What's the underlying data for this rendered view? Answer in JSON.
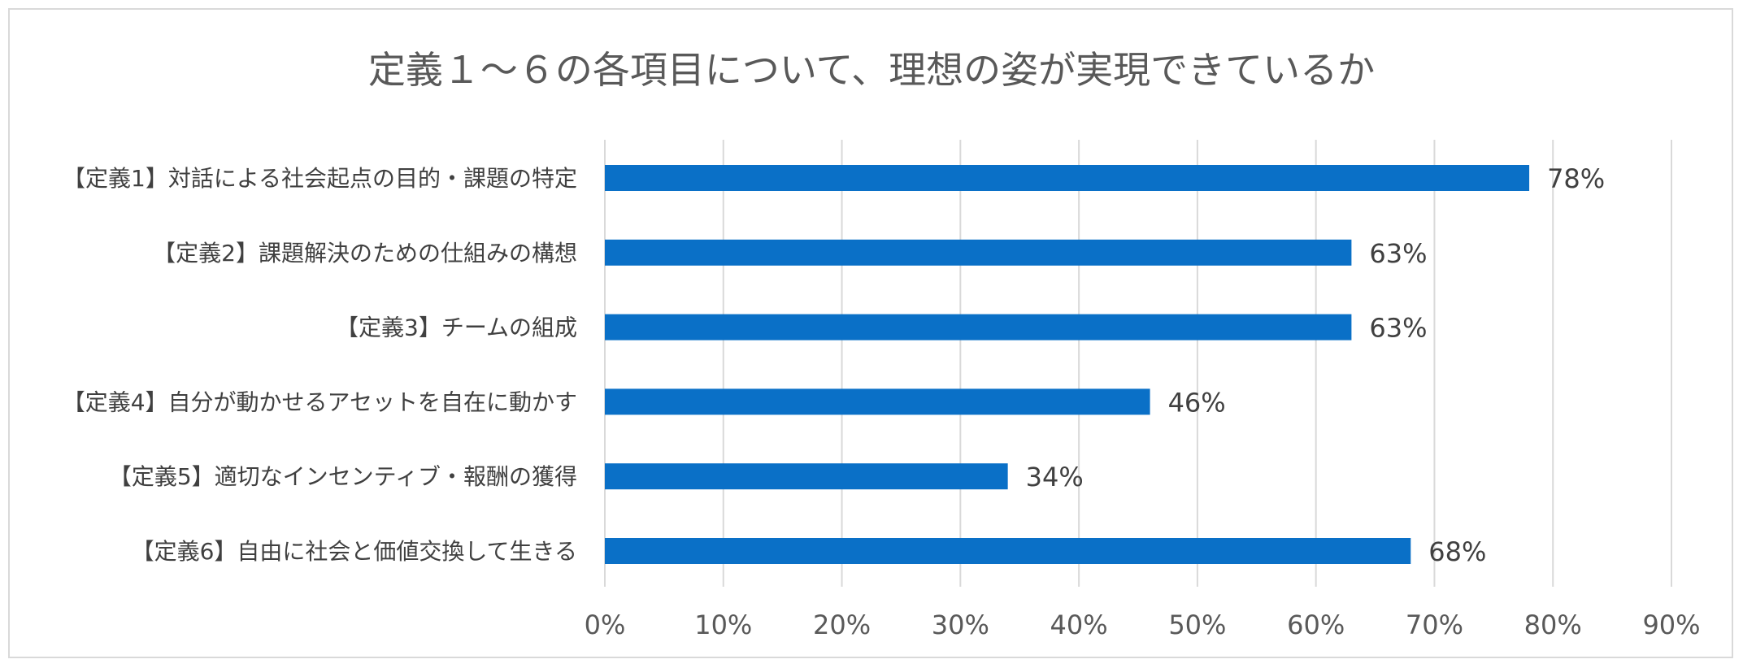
{
  "chart_data": {
    "type": "bar",
    "orientation": "horizontal",
    "title": "定義１～６の各項目について、理想の姿が実現できているか",
    "categories": [
      "【定義1】対話による社会起点の目的・課題の特定",
      "【定義2】課題解決のための仕組みの構想",
      "【定義3】チームの組成",
      "【定義4】自分が動かせるアセットを自在に動かす",
      "【定義5】適切なインセンティブ・報酬の獲得",
      "【定義6】自由に社会と価値交換して生きる"
    ],
    "values": [
      78,
      63,
      63,
      46,
      34,
      68
    ],
    "value_labels": [
      "78%",
      "63%",
      "63%",
      "46%",
      "34%",
      "68%"
    ],
    "xlim": [
      0,
      90
    ],
    "xticks": [
      0,
      10,
      20,
      30,
      40,
      50,
      60,
      70,
      80,
      90
    ],
    "xtick_labels": [
      "0%",
      "10%",
      "20%",
      "30%",
      "40%",
      "50%",
      "60%",
      "70%",
      "80%",
      "90%"
    ],
    "xlabel": "",
    "ylabel": "",
    "grid": "vertical",
    "bar_color": "#0a70c7",
    "legend": "none"
  }
}
